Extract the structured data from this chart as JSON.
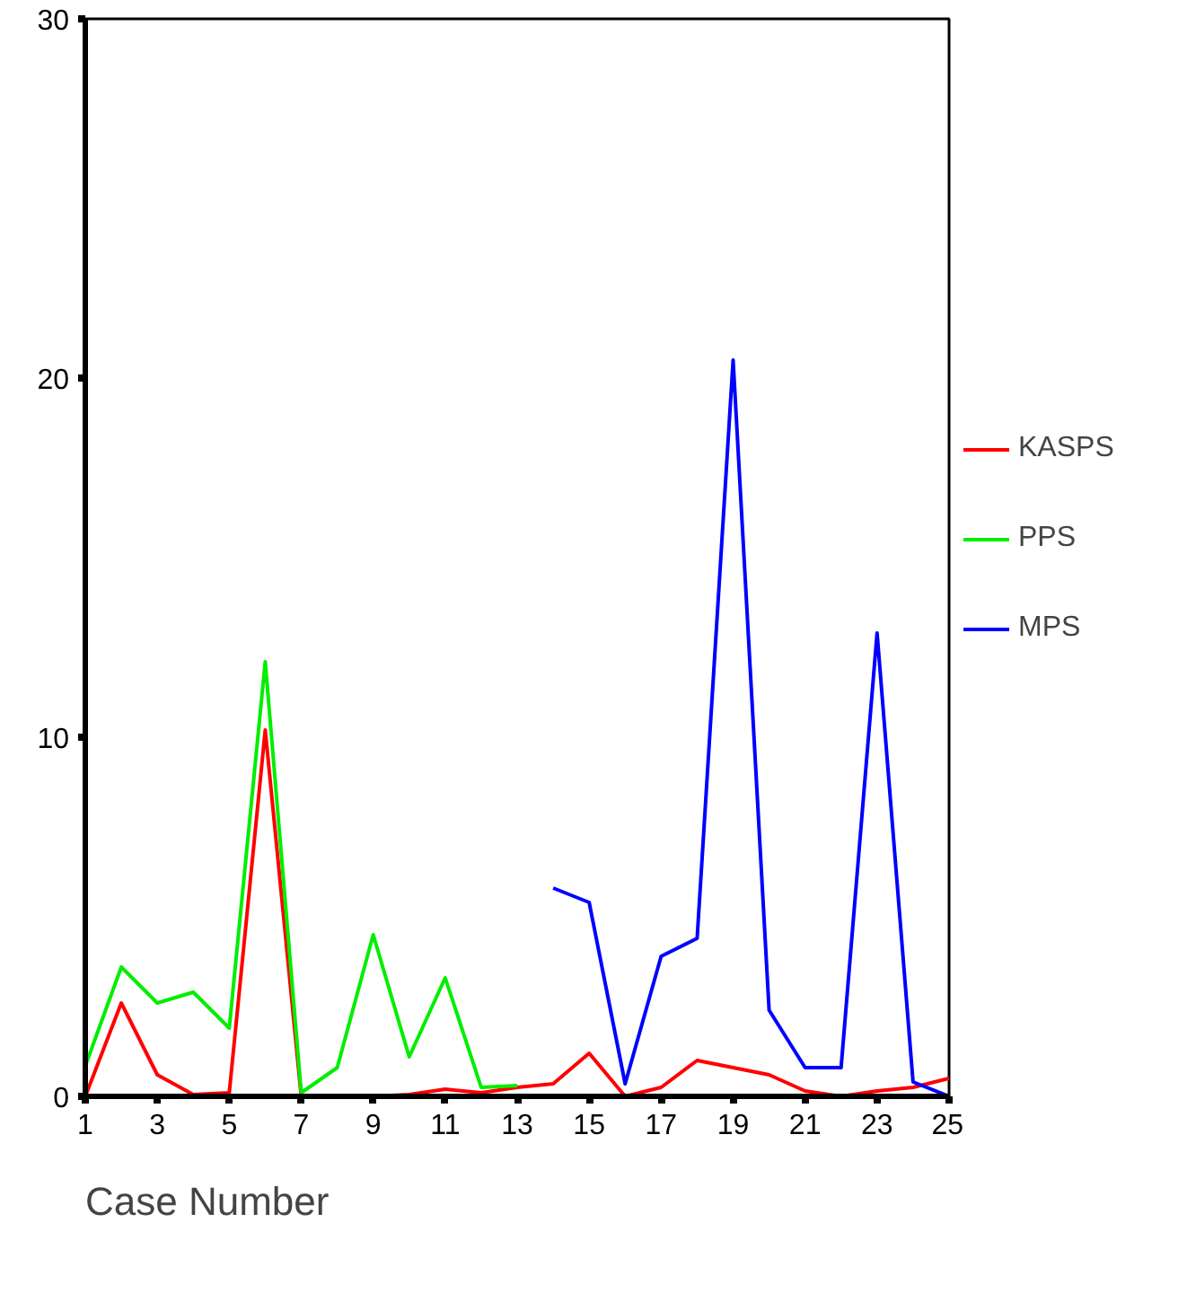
{
  "chart_data": {
    "type": "line",
    "xlabel": "Case Number",
    "x": [
      1,
      2,
      3,
      4,
      5,
      6,
      7,
      8,
      9,
      10,
      11,
      12,
      13,
      14,
      15,
      16,
      17,
      18,
      19,
      20,
      21,
      22,
      23,
      24,
      25
    ],
    "series": [
      {
        "name": "KASPS",
        "color": "#ff0000",
        "values": [
          0,
          2.6,
          0.6,
          0.05,
          0.1,
          10.2,
          0,
          0,
          0,
          0.05,
          0.2,
          0.1,
          0.25,
          0.35,
          1.2,
          0,
          0.25,
          1.0,
          0.8,
          0.6,
          0.15,
          0,
          0.15,
          0.25,
          0.5
        ]
      },
      {
        "name": "PPS",
        "color": "#00ee00",
        "values": [
          0.85,
          3.6,
          2.6,
          2.9,
          1.9,
          12.1,
          0.1,
          0.8,
          4.5,
          1.1,
          3.3,
          0.25,
          0.3,
          null,
          null,
          null,
          null,
          null,
          null,
          null,
          null,
          null,
          null,
          null,
          null
        ]
      },
      {
        "name": "MPS",
        "color": "#0000ff",
        "values": [
          null,
          null,
          null,
          null,
          null,
          null,
          null,
          null,
          null,
          null,
          null,
          null,
          null,
          5.8,
          5.4,
          0.35,
          3.9,
          4.4,
          20.5,
          2.4,
          0.8,
          0.8,
          12.9,
          0.4,
          0
        ]
      }
    ],
    "xlim": [
      1,
      25
    ],
    "xticks": [
      1,
      3,
      5,
      7,
      9,
      11,
      13,
      15,
      17,
      19,
      21,
      23,
      25
    ],
    "ylim": [
      0,
      30
    ],
    "yticks": [
      0,
      10,
      20,
      30
    ],
    "grid": false,
    "legend": "right",
    "marker": "none",
    "line_style": "solid"
  }
}
